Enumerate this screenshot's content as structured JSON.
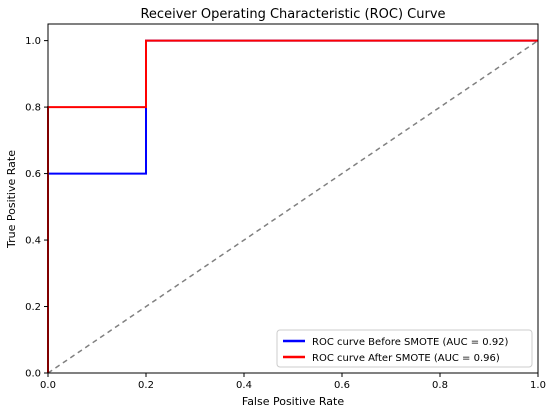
{
  "chart_data": {
    "type": "line",
    "title": "Receiver Operating Characteristic (ROC) Curve",
    "xlabel": "False Positive Rate",
    "ylabel": "True Positive Rate",
    "xlim": [
      0.0,
      1.0
    ],
    "ylim": [
      0.0,
      1.05
    ],
    "xticks": [
      "0.0",
      "0.2",
      "0.4",
      "0.6",
      "0.8",
      "1.0"
    ],
    "yticks": [
      "0.0",
      "0.2",
      "0.4",
      "0.6",
      "0.8",
      "1.0"
    ],
    "grid": false,
    "legend_position": "lower-right",
    "series": [
      {
        "name": "ROC curve Before SMOTE (AUC = 0.92)",
        "color": "#0000ff",
        "x": [
          0.0,
          0.0,
          0.2,
          0.2,
          1.0
        ],
        "y": [
          0.0,
          0.6,
          0.6,
          1.0,
          1.0
        ]
      },
      {
        "name": "ROC curve After SMOTE (AUC = 0.96)",
        "color": "#ff0000",
        "x": [
          0.0,
          0.0,
          0.2,
          0.2,
          1.0
        ],
        "y": [
          0.0,
          0.8,
          0.8,
          1.0,
          1.0
        ]
      }
    ],
    "reference_line": {
      "x": [
        0.0,
        1.0
      ],
      "y": [
        0.0,
        1.0
      ],
      "style": "dashed",
      "color": "#808080"
    }
  }
}
